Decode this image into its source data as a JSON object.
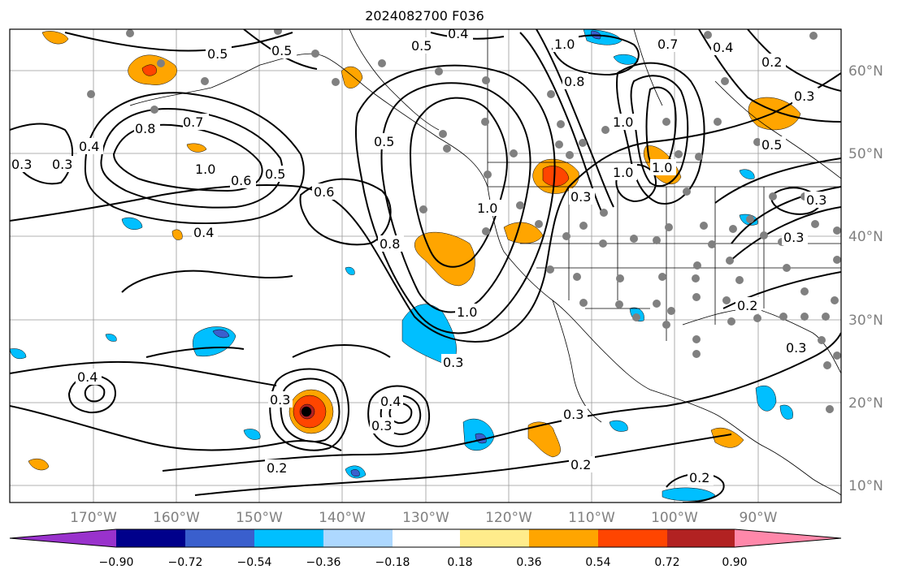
{
  "title": "2024082700 F036",
  "map": {
    "lon_ticks": [
      "170°W",
      "160°W",
      "150°W",
      "140°W",
      "130°W",
      "120°W",
      "110°W",
      "100°W",
      "90°W"
    ],
    "lat_ticks": [
      "60°N",
      "50°N",
      "40°N",
      "30°N",
      "20°N",
      "10°N"
    ],
    "contour_labels": [
      "0.5",
      "0.4",
      "0.5",
      "1.0",
      "0.7",
      "0.4",
      "0.2",
      "0.3",
      "0.8",
      "0.7",
      "0.3",
      "0.4",
      "0.3",
      "1.0",
      "0.6",
      "0.5",
      "0.6",
      "0.4",
      "0.5",
      "0.8",
      "1.0",
      "1.0",
      "0.8",
      "1.0",
      "1.0",
      "1.0",
      "0.3",
      "0.5",
      "0.3",
      "0.3",
      "0.2",
      "0.4",
      "0.3",
      "0.3",
      "0.3",
      "0.4",
      "0.3",
      "0.2",
      "0.2",
      "0.2",
      "0.3",
      "0.5"
    ],
    "colors": {
      "contour": "#000000",
      "station": "#808080",
      "grid": "#999999"
    }
  },
  "colorbar": {
    "ticks": [
      "−0.90",
      "−0.72",
      "−0.54",
      "−0.36",
      "−0.18",
      "0.18",
      "0.36",
      "0.54",
      "0.72",
      "0.90"
    ],
    "colors": [
      "#9932cc",
      "#00008b",
      "#3a5fcd",
      "#00bfff",
      "#add8ff",
      "#ffffff",
      "#ffec8b",
      "#ffa500",
      "#ff4500",
      "#b22222",
      "#ff88aa"
    ]
  }
}
